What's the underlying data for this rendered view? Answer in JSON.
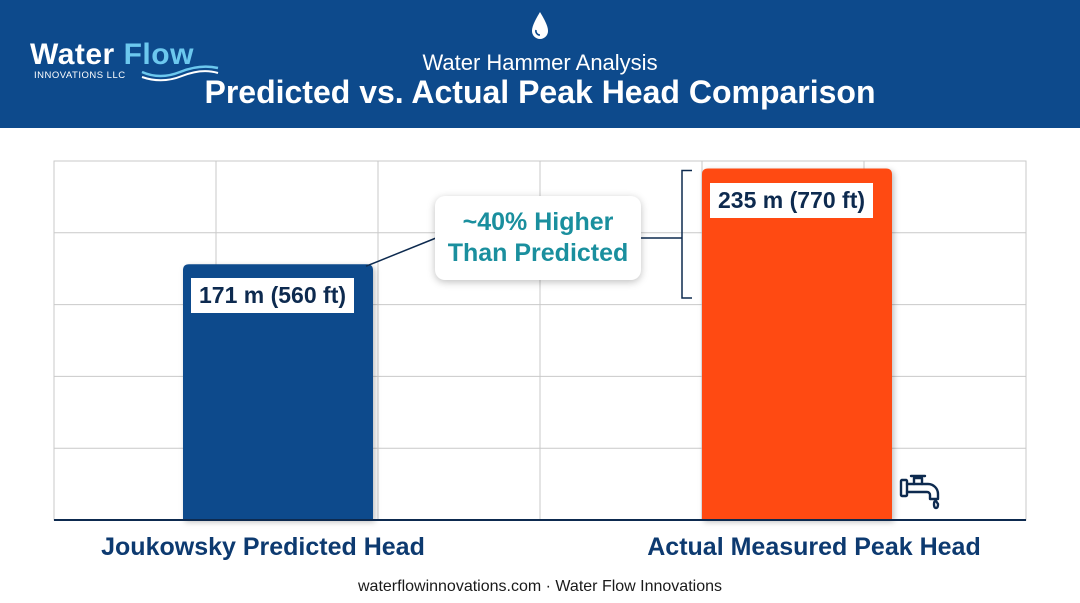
{
  "header": {
    "logo_word_a": "Water",
    "logo_word_b": "Flow",
    "logo_sub": "INNOVATIONS LLC",
    "subtitle": "Water Hammer Analysis",
    "title": "Predicted vs. Actual Peak Head Comparison"
  },
  "colors": {
    "header_bg": "#0d4a8c",
    "predicted_bar": "#0d4a8c",
    "actual_bar": "#ff4a12",
    "callout_text": "#1a8f9e"
  },
  "chart_data": {
    "type": "bar",
    "categories": [
      "Joukowsky Predicted Head",
      "Actual Measured Peak Head"
    ],
    "values": [
      171,
      235
    ],
    "value_labels": [
      "171 m (560 ft)",
      "235 m (770 ft)"
    ],
    "ylim": [
      0,
      240
    ],
    "grid": true,
    "annotation": "~40% Higher Than Predicted",
    "annotation_lines": [
      "~40% Higher",
      "Than Predicted"
    ]
  },
  "icons": [
    "water-drop-icon",
    "faucet-icon"
  ],
  "footer": "waterflowinnovations.com · Water Flow Innovations"
}
